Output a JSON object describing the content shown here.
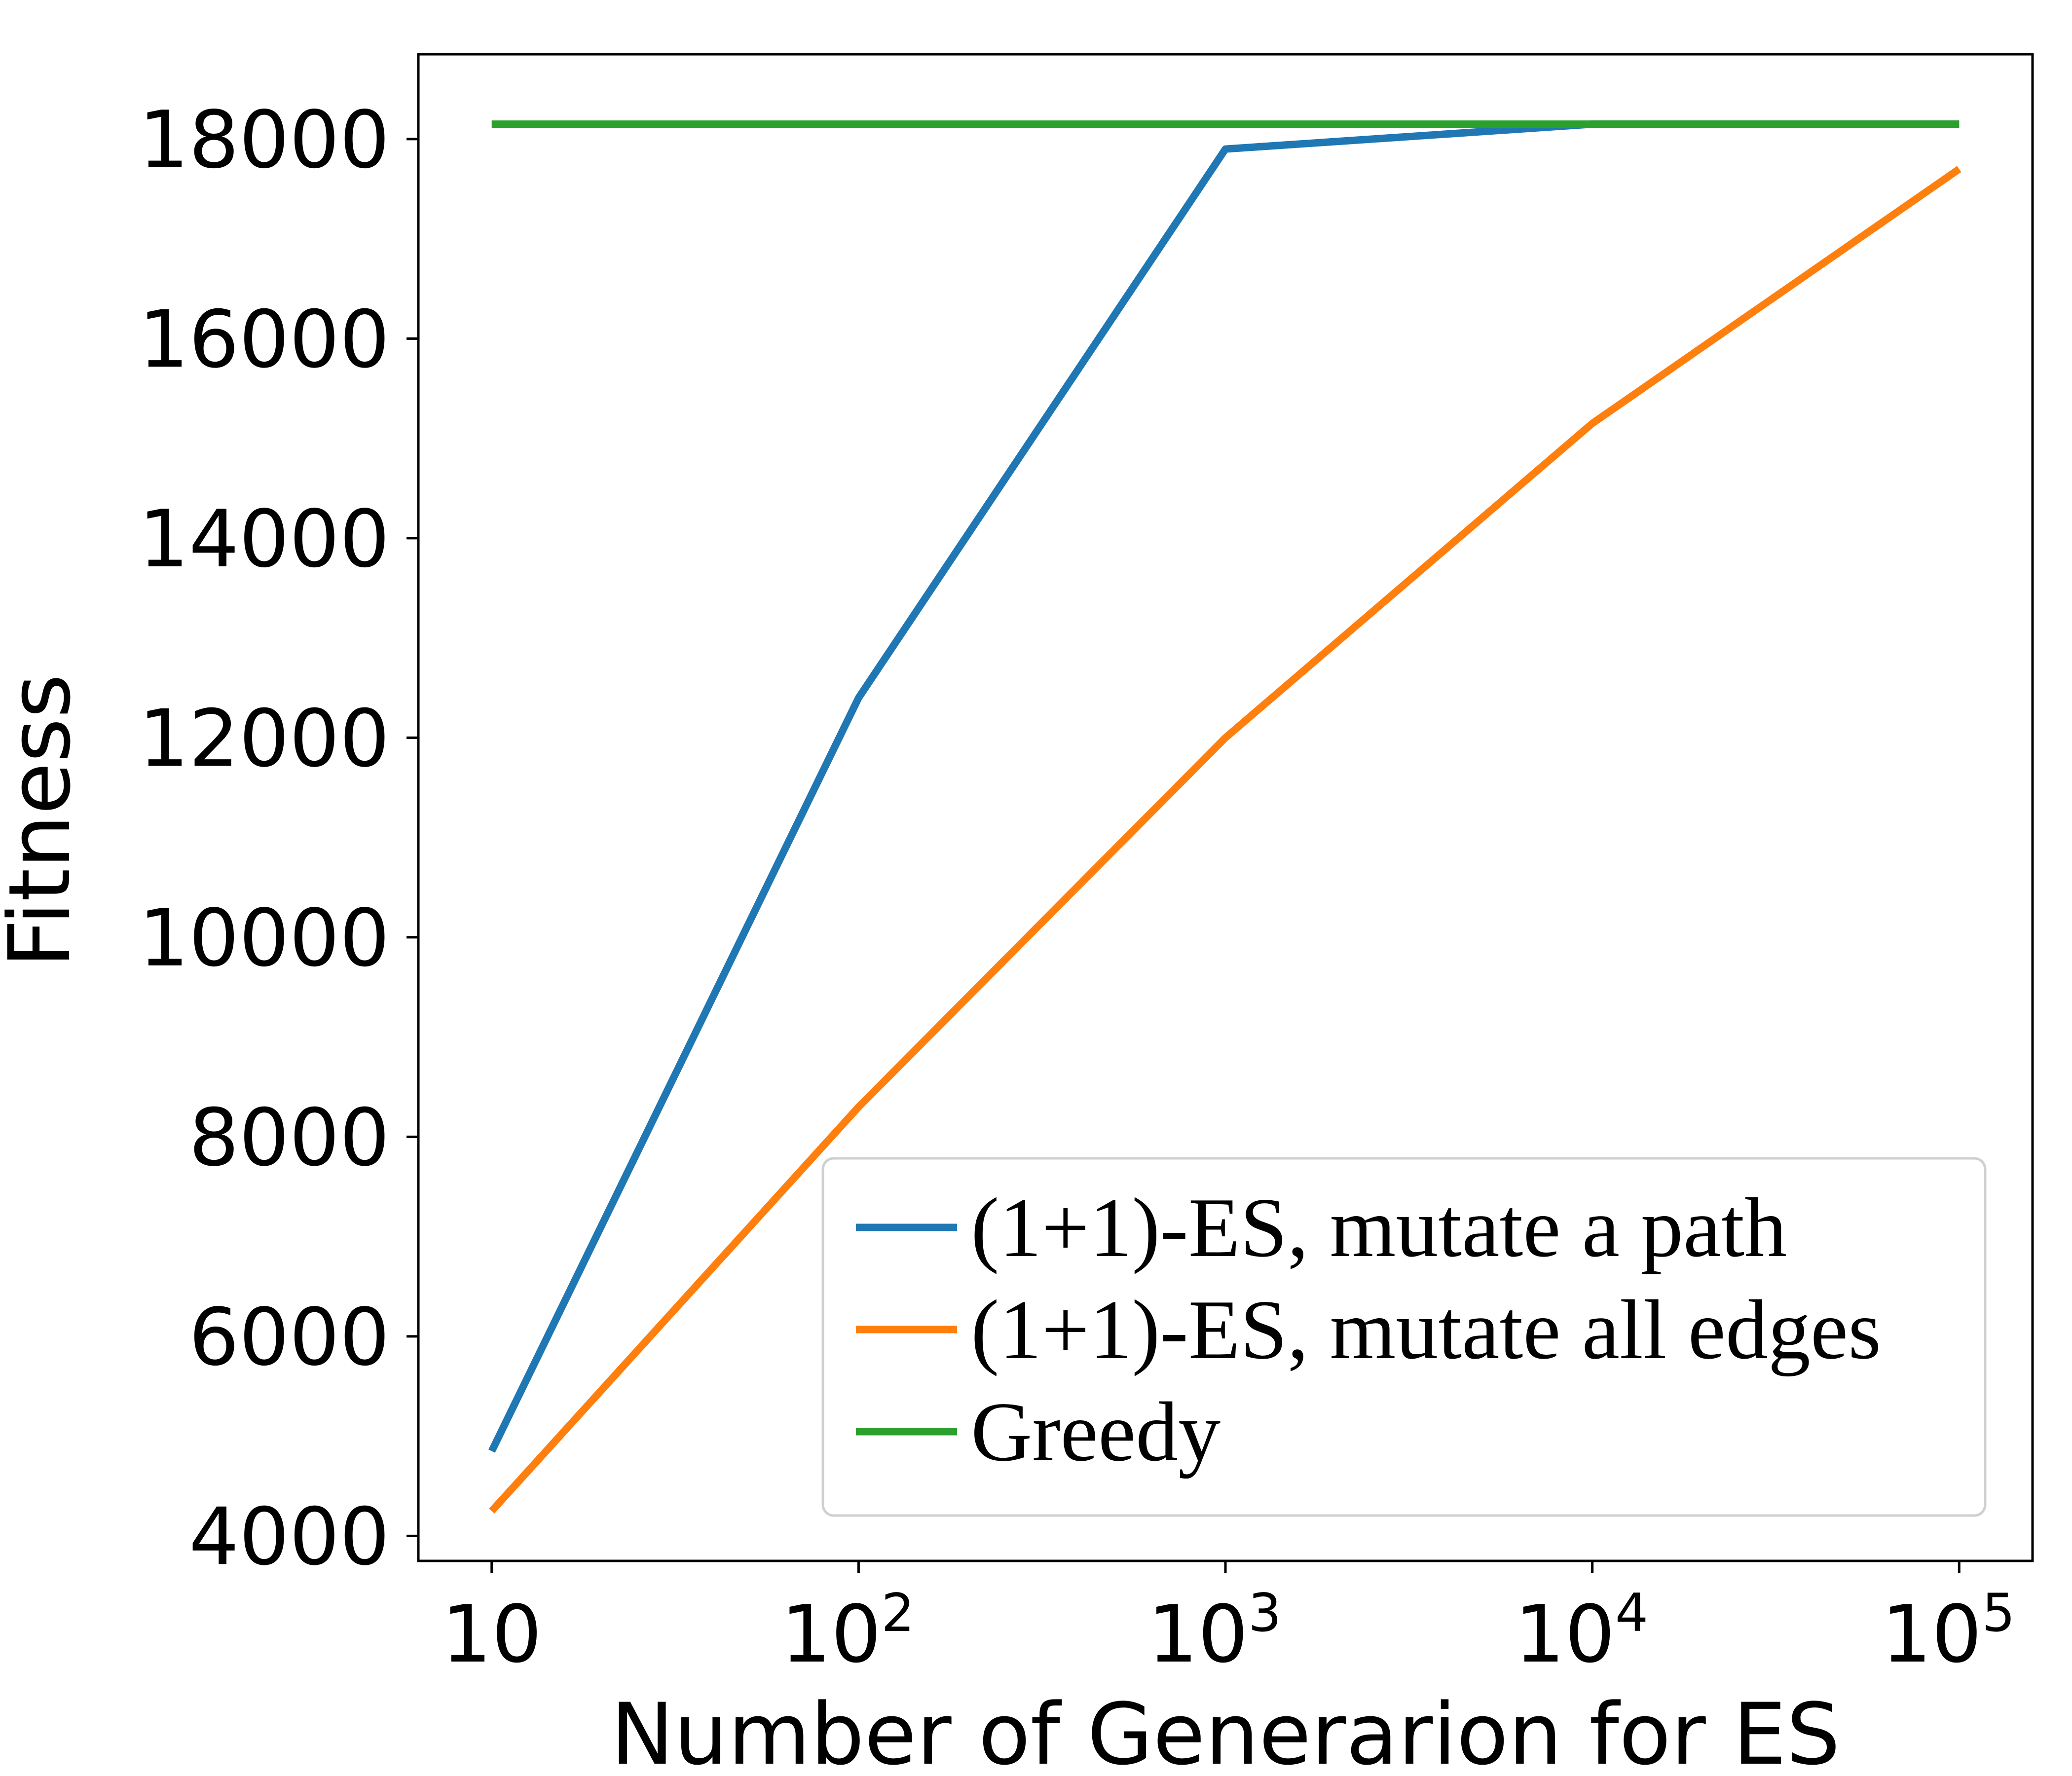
{
  "chart_data": {
    "type": "line",
    "xlabel": "Number of Generarion for ES",
    "ylabel": "Fitness",
    "xscale": "log",
    "x": [
      10,
      100,
      1000,
      10000,
      100000
    ],
    "xtick_labels": [
      {
        "base": "10",
        "exp": ""
      },
      {
        "base": "10",
        "exp": "2"
      },
      {
        "base": "10",
        "exp": "3"
      },
      {
        "base": "10",
        "exp": "4"
      },
      {
        "base": "10",
        "exp": "5"
      }
    ],
    "yticks": [
      4000,
      6000,
      8000,
      10000,
      12000,
      14000,
      16000,
      18000
    ],
    "ylim": [
      3750,
      18850
    ],
    "xlim_log10": [
      0.8,
      5.2
    ],
    "grid": false,
    "legend_position": "lower-right",
    "series": [
      {
        "name": "(1+1)-ES, mutate a path",
        "color": "#1f77b4",
        "values": [
          4850,
          12400,
          17900,
          18150,
          18150
        ]
      },
      {
        "name": "(1+1)-ES, mutate all edges",
        "color": "#ff7f0e",
        "values": [
          4250,
          8300,
          12000,
          15150,
          17700
        ]
      },
      {
        "name": "Greedy",
        "color": "#2ca02c",
        "values": [
          18150,
          18150,
          18150,
          18150,
          18150
        ]
      }
    ]
  }
}
